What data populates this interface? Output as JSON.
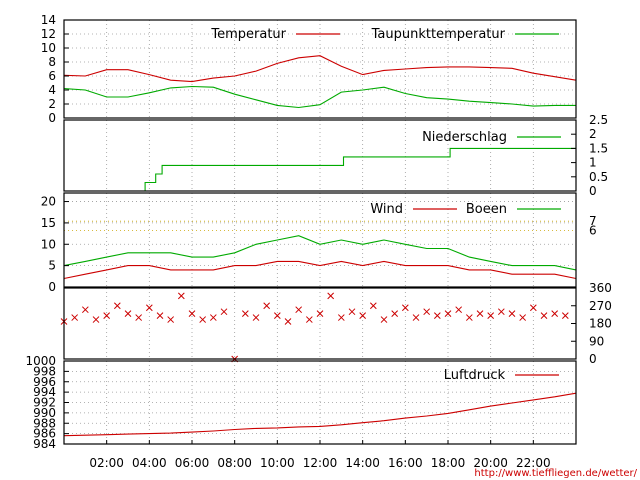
{
  "source_url": "http://www.tiefflieg en.de/wetter/",
  "chart_data": [
    {
      "type": "line",
      "panel": "temperature",
      "yticks": [
        "0",
        "2",
        "4",
        "6",
        "8",
        "10",
        "12",
        "14"
      ],
      "ylim": [
        0,
        14
      ],
      "xticks": [
        "02:00",
        "04:00",
        "06:00",
        "08:00",
        "10:00",
        "12:00",
        "14:00",
        "16:00",
        "18:00",
        "20:00",
        "22:00"
      ],
      "xlim_hours": [
        0,
        24
      ],
      "grid": true,
      "series": [
        {
          "name": "Temperatur",
          "color": "#cc0000",
          "x": [
            0,
            1,
            2,
            3,
            4,
            5,
            6,
            7,
            8,
            9,
            10,
            11,
            12,
            13,
            14,
            15,
            16,
            17,
            18,
            19,
            20,
            21,
            22,
            23,
            24
          ],
          "values": [
            6.1,
            6.0,
            6.9,
            6.9,
            6.2,
            5.4,
            5.2,
            5.7,
            6.0,
            6.7,
            7.8,
            8.6,
            8.9,
            7.4,
            6.2,
            6.8,
            7.0,
            7.2,
            7.3,
            7.3,
            7.2,
            7.1,
            6.4,
            5.9,
            5.4
          ]
        },
        {
          "name": "Taupunkttemperatur",
          "color": "#00aa00",
          "x": [
            0,
            1,
            2,
            3,
            4,
            5,
            6,
            7,
            8,
            9,
            10,
            11,
            12,
            13,
            14,
            15,
            16,
            17,
            18,
            19,
            20,
            21,
            22,
            23,
            24
          ],
          "values": [
            4.2,
            4.0,
            3.0,
            3.0,
            3.6,
            4.3,
            4.5,
            4.4,
            3.4,
            2.6,
            1.8,
            1.5,
            1.9,
            3.7,
            4.0,
            4.4,
            3.5,
            2.9,
            2.7,
            2.4,
            2.2,
            2.0,
            1.7,
            1.8,
            1.8
          ]
        }
      ]
    },
    {
      "type": "line",
      "panel": "precipitation",
      "yticks": [
        "0",
        "0.5",
        "1",
        "1.5",
        "2",
        "2.5"
      ],
      "ylim": [
        0,
        2.5
      ],
      "series": [
        {
          "name": "Niederschlag",
          "color": "#00aa00",
          "x": [
            0,
            3.8,
            3.8,
            4.3,
            4.3,
            4.6,
            4.6,
            13.1,
            13.1,
            18.1,
            18.1,
            24
          ],
          "values": [
            0,
            0,
            0.3,
            0.3,
            0.6,
            0.6,
            0.9,
            0.9,
            1.2,
            1.2,
            1.5,
            1.5
          ]
        }
      ]
    },
    {
      "type": "line",
      "panel": "wind",
      "yticks": [
        "0",
        "5",
        "10",
        "15",
        "20"
      ],
      "ylim": [
        0,
        22
      ],
      "right_ticks": [
        "6",
        "7"
      ],
      "series": [
        {
          "name": "Wind",
          "color": "#cc0000",
          "x": [
            0,
            1,
            2,
            3,
            4,
            5,
            6,
            7,
            8,
            9,
            10,
            11,
            12,
            13,
            14,
            15,
            16,
            17,
            18,
            19,
            20,
            21,
            22,
            23,
            24
          ],
          "values": [
            2,
            3,
            4,
            5,
            5,
            4,
            4,
            4,
            5,
            5,
            6,
            6,
            5,
            6,
            5,
            6,
            5,
            5,
            5,
            4,
            4,
            3,
            3,
            3,
            2
          ]
        },
        {
          "name": "Boeen",
          "color": "#00aa00",
          "x": [
            0,
            1,
            2,
            3,
            4,
            5,
            6,
            7,
            8,
            9,
            10,
            11,
            12,
            13,
            14,
            15,
            16,
            17,
            18,
            19,
            20,
            21,
            22,
            23,
            24
          ],
          "values": [
            5,
            6,
            7,
            8,
            8,
            8,
            7,
            7,
            8,
            10,
            11,
            12,
            10,
            11,
            10,
            11,
            10,
            9,
            9,
            7,
            6,
            5,
            5,
            5,
            4
          ]
        }
      ]
    },
    {
      "type": "scatter",
      "panel": "wind_direction",
      "yticks": [
        "0",
        "90",
        "180",
        "270",
        "360"
      ],
      "ylim": [
        0,
        360
      ],
      "series": [
        {
          "name": "",
          "color": "#cc0000",
          "x": [
            0,
            0.5,
            1,
            1.5,
            2,
            2.5,
            3,
            3.5,
            4,
            4.5,
            5,
            5.5,
            6,
            6.5,
            7,
            7.5,
            8,
            8.5,
            9,
            9.5,
            10,
            10.5,
            11,
            11.5,
            12,
            12.5,
            13,
            13.5,
            14,
            14.5,
            15,
            15.5,
            16,
            16.5,
            17,
            17.5,
            18,
            18.5,
            19,
            19.5,
            20,
            20.5,
            21,
            21.5,
            22,
            22.5,
            23,
            23.5
          ],
          "values": [
            190,
            210,
            250,
            200,
            220,
            270,
            230,
            210,
            260,
            220,
            200,
            320,
            230,
            200,
            210,
            240,
            0,
            230,
            210,
            270,
            220,
            190,
            250,
            200,
            230,
            320,
            210,
            240,
            220,
            270,
            200,
            230,
            260,
            210,
            240,
            220,
            230,
            250,
            210,
            230,
            220,
            240,
            230,
            210,
            260,
            220,
            230,
            220
          ]
        }
      ]
    },
    {
      "type": "line",
      "panel": "pressure",
      "yticks": [
        "984",
        "986",
        "988",
        "990",
        "992",
        "994",
        "996",
        "998",
        "1000"
      ],
      "ylim": [
        984,
        1000
      ],
      "series": [
        {
          "name": "Luftdruck",
          "color": "#cc0000",
          "x": [
            0,
            1,
            2,
            3,
            4,
            5,
            6,
            7,
            8,
            9,
            10,
            11,
            12,
            13,
            14,
            15,
            16,
            17,
            18,
            19,
            20,
            21,
            22,
            23,
            24
          ],
          "values": [
            985.6,
            985.7,
            985.8,
            985.9,
            986.0,
            986.1,
            986.3,
            986.5,
            986.8,
            987.0,
            987.1,
            987.3,
            987.4,
            987.7,
            988.1,
            988.5,
            989.0,
            989.4,
            989.9,
            990.6,
            991.3,
            991.9,
            992.5,
            993.1,
            993.8
          ]
        }
      ]
    }
  ]
}
